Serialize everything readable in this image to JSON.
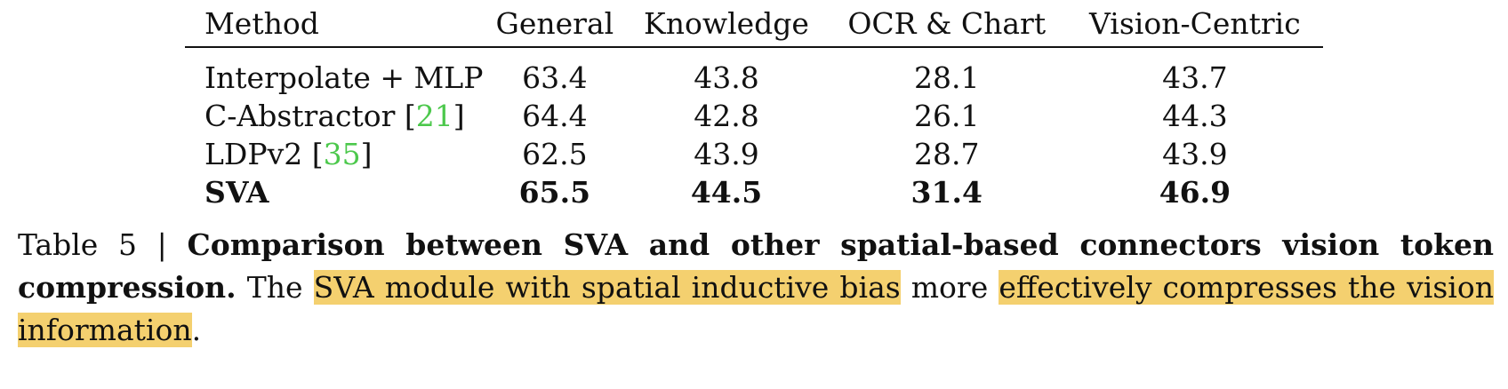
{
  "table": {
    "headers": [
      "Method",
      "General",
      "Knowledge",
      "OCR & Chart",
      "Vision-Centric"
    ],
    "rows": [
      {
        "method": "Interpolate + MLP",
        "cite": "",
        "values": [
          "63.4",
          "43.8",
          "28.1",
          "43.7"
        ],
        "bold": false
      },
      {
        "method": "C-Abstractor",
        "cite": "21",
        "values": [
          "64.4",
          "42.8",
          "26.1",
          "44.3"
        ],
        "bold": false
      },
      {
        "method": "LDPv2",
        "cite": "35",
        "values": [
          "62.5",
          "43.9",
          "28.7",
          "43.9"
        ],
        "bold": false
      },
      {
        "method": "SVA",
        "cite": "",
        "values": [
          "65.5",
          "44.5",
          "31.4",
          "46.9"
        ],
        "bold": true
      }
    ]
  },
  "caption": {
    "label": "Table 5 |",
    "title": "Comparison between SVA and other spatial-based connectors vision token compression.",
    "text_1": "The",
    "highlight_1": "SVA module with spatial inductive bias",
    "text_2": "more",
    "highlight_2": "effectively compresses the vision information",
    "text_3": "."
  },
  "colors": {
    "highlight": "#f4d06f",
    "citation": "#4cc84c"
  }
}
